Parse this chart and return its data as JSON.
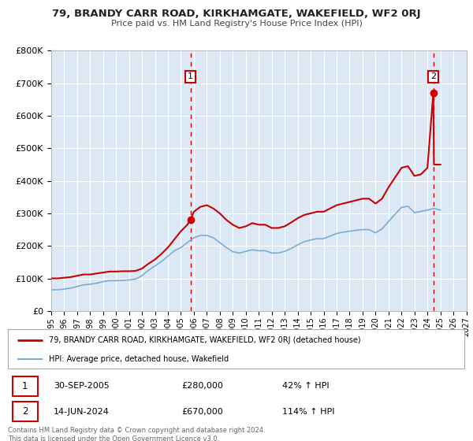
{
  "title": "79, BRANDY CARR ROAD, KIRKHAMGATE, WAKEFIELD, WF2 0RJ",
  "subtitle": "Price paid vs. HM Land Registry's House Price Index (HPI)",
  "bg_color": "#dce9f5",
  "grid_color": "#ffffff",
  "red_color": "#cc0000",
  "blue_color": "#7aadd4",
  "xmin": 1995,
  "xmax": 2027,
  "ymin": 0,
  "ymax": 800000,
  "yticks": [
    0,
    100000,
    200000,
    300000,
    400000,
    500000,
    600000,
    700000,
    800000
  ],
  "ytick_labels": [
    "£0",
    "£100K",
    "£200K",
    "£300K",
    "£400K",
    "£500K",
    "£600K",
    "£700K",
    "£800K"
  ],
  "xticks": [
    1995,
    1996,
    1997,
    1998,
    1999,
    2000,
    2001,
    2002,
    2003,
    2004,
    2005,
    2006,
    2007,
    2008,
    2009,
    2010,
    2011,
    2012,
    2013,
    2014,
    2015,
    2016,
    2017,
    2018,
    2019,
    2020,
    2021,
    2022,
    2023,
    2024,
    2025,
    2026,
    2027
  ],
  "sale1_x": 2005.75,
  "sale1_y": 280000,
  "sale1_label": "1",
  "sale2_x": 2024.45,
  "sale2_y": 670000,
  "sale2_label": "2",
  "legend_line1": "79, BRANDY CARR ROAD, KIRKHAMGATE, WAKEFIELD, WF2 0RJ (detached house)",
  "legend_line2": "HPI: Average price, detached house, Wakefield",
  "table_row1_num": "1",
  "table_row1_date": "30-SEP-2005",
  "table_row1_price": "£280,000",
  "table_row1_hpi": "42% ↑ HPI",
  "table_row2_num": "2",
  "table_row2_date": "14-JUN-2024",
  "table_row2_price": "£670,000",
  "table_row2_hpi": "114% ↑ HPI",
  "footer": "Contains HM Land Registry data © Crown copyright and database right 2024.\nThis data is licensed under the Open Government Licence v3.0.",
  "hpi_red_x": [
    1995.0,
    1995.5,
    1996.0,
    1996.5,
    1997.0,
    1997.5,
    1998.0,
    1998.5,
    1999.0,
    1999.5,
    2000.0,
    2000.5,
    2001.0,
    2001.5,
    2002.0,
    2002.5,
    2003.0,
    2003.5,
    2004.0,
    2004.5,
    2005.0,
    2005.5,
    2005.75,
    2006.0,
    2006.5,
    2007.0,
    2007.5,
    2008.0,
    2008.5,
    2009.0,
    2009.5,
    2010.0,
    2010.5,
    2011.0,
    2011.5,
    2012.0,
    2012.5,
    2013.0,
    2013.5,
    2014.0,
    2014.5,
    2015.0,
    2015.5,
    2016.0,
    2016.5,
    2017.0,
    2017.5,
    2018.0,
    2018.5,
    2019.0,
    2019.5,
    2020.0,
    2020.5,
    2021.0,
    2021.5,
    2022.0,
    2022.5,
    2023.0,
    2023.5,
    2024.0,
    2024.45,
    2024.5,
    2025.0
  ],
  "hpi_red_y": [
    100000,
    100000,
    102000,
    104000,
    108000,
    112000,
    112000,
    115000,
    118000,
    121000,
    121000,
    122000,
    122000,
    123000,
    130000,
    145000,
    158000,
    175000,
    195000,
    220000,
    245000,
    265000,
    280000,
    305000,
    320000,
    325000,
    315000,
    300000,
    280000,
    265000,
    255000,
    260000,
    270000,
    265000,
    265000,
    255000,
    255000,
    260000,
    272000,
    285000,
    295000,
    300000,
    305000,
    305000,
    315000,
    325000,
    330000,
    335000,
    340000,
    345000,
    345000,
    330000,
    345000,
    380000,
    410000,
    440000,
    445000,
    415000,
    420000,
    440000,
    670000,
    450000,
    450000
  ],
  "hpi_blue_x": [
    1995.0,
    1995.5,
    1996.0,
    1996.5,
    1997.0,
    1997.5,
    1998.0,
    1998.5,
    1999.0,
    1999.5,
    2000.0,
    2000.5,
    2001.0,
    2001.5,
    2002.0,
    2002.5,
    2003.0,
    2003.5,
    2004.0,
    2004.5,
    2005.0,
    2005.5,
    2006.0,
    2006.5,
    2007.0,
    2007.5,
    2008.0,
    2008.5,
    2009.0,
    2009.5,
    2010.0,
    2010.5,
    2011.0,
    2011.5,
    2012.0,
    2012.5,
    2013.0,
    2013.5,
    2014.0,
    2014.5,
    2015.0,
    2015.5,
    2016.0,
    2016.5,
    2017.0,
    2017.5,
    2018.0,
    2018.5,
    2019.0,
    2019.5,
    2020.0,
    2020.5,
    2021.0,
    2021.5,
    2022.0,
    2022.5,
    2023.0,
    2023.5,
    2024.0,
    2024.5,
    2025.0
  ],
  "hpi_blue_y": [
    65000,
    65000,
    67000,
    70000,
    75000,
    80000,
    82000,
    85000,
    90000,
    93000,
    93000,
    94000,
    95000,
    98000,
    108000,
    125000,
    138000,
    152000,
    168000,
    185000,
    195000,
    210000,
    225000,
    232000,
    232000,
    225000,
    210000,
    195000,
    182000,
    178000,
    183000,
    188000,
    185000,
    185000,
    178000,
    178000,
    183000,
    192000,
    203000,
    213000,
    218000,
    222000,
    222000,
    230000,
    238000,
    242000,
    245000,
    248000,
    250000,
    250000,
    240000,
    252000,
    275000,
    297000,
    318000,
    322000,
    302000,
    306000,
    310000,
    315000,
    310000
  ]
}
